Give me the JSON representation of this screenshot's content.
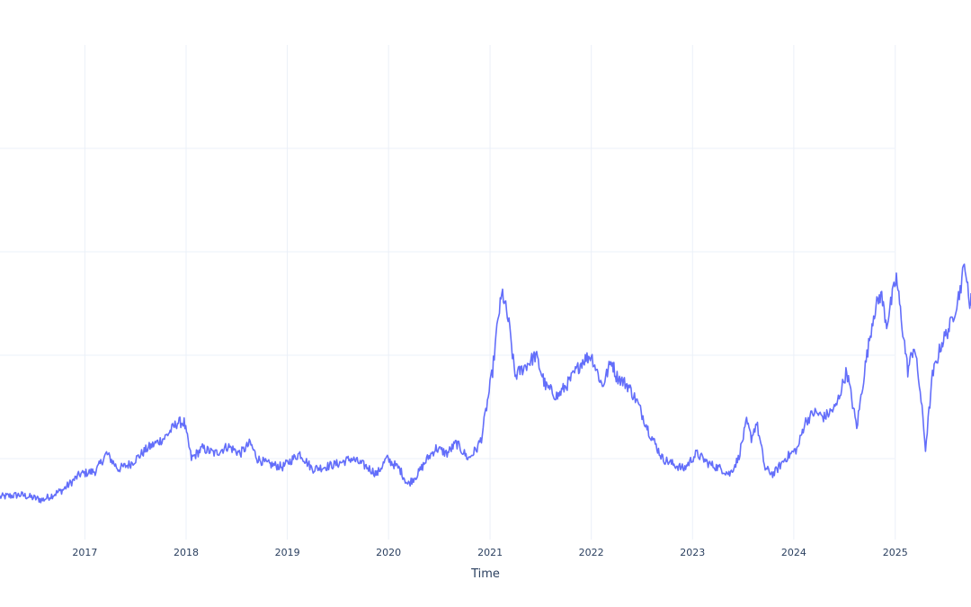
{
  "chart_data": {
    "type": "line",
    "title": "",
    "xlabel": "Time",
    "ylabel": "",
    "x_tick_labels": [
      "2017",
      "2018",
      "2019",
      "2020",
      "2021",
      "2022",
      "2023",
      "2024",
      "2025"
    ],
    "x_ticks": [
      "2017-01-01",
      "2018-01-01",
      "2019-01-01",
      "2020-01-01",
      "2021-01-01",
      "2022-01-01",
      "2023-01-01",
      "2024-01-01",
      "2025-01-01"
    ],
    "xlim": [
      "2016-03-01",
      "2025-10-01"
    ],
    "y_gridlines": [
      1,
      2,
      3,
      4
    ],
    "ylim": [
      0,
      5
    ],
    "grid": true,
    "legend": "none",
    "series": [
      {
        "color": "#636efa",
        "x": [
          "2016-03-01",
          "2016-05-15",
          "2016-08-01",
          "2016-10-15",
          "2016-12-15",
          "2017-02-10",
          "2017-03-20",
          "2017-05-01",
          "2017-06-15",
          "2017-08-15",
          "2017-10-15",
          "2017-12-01",
          "2017-12-25",
          "2018-01-20",
          "2018-03-01",
          "2018-04-15",
          "2018-06-01",
          "2018-07-15",
          "2018-08-20",
          "2018-09-15",
          "2018-10-20",
          "2018-12-15",
          "2019-02-15",
          "2019-04-01",
          "2019-05-15",
          "2019-07-01",
          "2019-08-20",
          "2019-10-15",
          "2019-11-20",
          "2019-12-25",
          "2020-02-10",
          "2020-03-10",
          "2020-04-15",
          "2020-05-20",
          "2020-06-20",
          "2020-07-30",
          "2020-09-01",
          "2020-10-15",
          "2020-11-15",
          "2020-12-01",
          "2021-01-10",
          "2021-02-01",
          "2021-02-15",
          "2021-03-10",
          "2021-04-01",
          "2021-05-10",
          "2021-06-15",
          "2021-07-20",
          "2021-09-01",
          "2021-10-15",
          "2021-12-01",
          "2022-01-01",
          "2022-02-10",
          "2022-03-15",
          "2022-04-01",
          "2022-05-15",
          "2022-06-15",
          "2022-07-30",
          "2022-09-15",
          "2022-10-20",
          "2022-12-01",
          "2023-01-15",
          "2023-03-01",
          "2023-04-15",
          "2023-05-15",
          "2023-06-15",
          "2023-07-15",
          "2023-08-01",
          "2023-08-20",
          "2023-09-20",
          "2023-10-20",
          "2023-12-01",
          "2024-01-15",
          "2024-02-10",
          "2024-03-15",
          "2024-04-20",
          "2024-06-01",
          "2024-07-10",
          "2024-08-15",
          "2024-09-15",
          "2024-10-15",
          "2024-11-10",
          "2024-12-01",
          "2025-01-05",
          "2025-02-15",
          "2025-03-10",
          "2025-04-01",
          "2025-04-20",
          "2025-05-15",
          "2025-06-15",
          "2025-07-20",
          "2025-08-20",
          "2025-09-10",
          "2025-09-25",
          "2025-10-01"
        ],
        "y": [
          0.63,
          0.65,
          0.6,
          0.7,
          0.85,
          0.88,
          1.05,
          0.9,
          0.95,
          1.1,
          1.2,
          1.35,
          1.35,
          1.0,
          1.1,
          1.05,
          1.12,
          1.05,
          1.15,
          1.0,
          0.95,
          0.92,
          1.05,
          0.9,
          0.92,
          0.95,
          1.0,
          0.92,
          0.85,
          1.0,
          0.9,
          0.75,
          0.85,
          1.0,
          1.1,
          1.05,
          1.15,
          1.0,
          1.1,
          1.2,
          1.85,
          2.4,
          2.6,
          2.3,
          1.8,
          1.9,
          2.0,
          1.7,
          1.6,
          1.75,
          1.95,
          2.0,
          1.7,
          1.95,
          1.8,
          1.7,
          1.55,
          1.25,
          1.0,
          0.95,
          0.9,
          1.05,
          0.95,
          0.9,
          0.85,
          1.0,
          1.35,
          1.2,
          1.35,
          0.9,
          0.85,
          1.0,
          1.1,
          1.35,
          1.45,
          1.4,
          1.5,
          1.85,
          1.3,
          1.9,
          2.4,
          2.6,
          2.3,
          2.75,
          1.85,
          2.1,
          1.65,
          1.1,
          1.8,
          2.1,
          2.3,
          2.6,
          2.9,
          2.45,
          2.6
        ]
      }
    ]
  }
}
